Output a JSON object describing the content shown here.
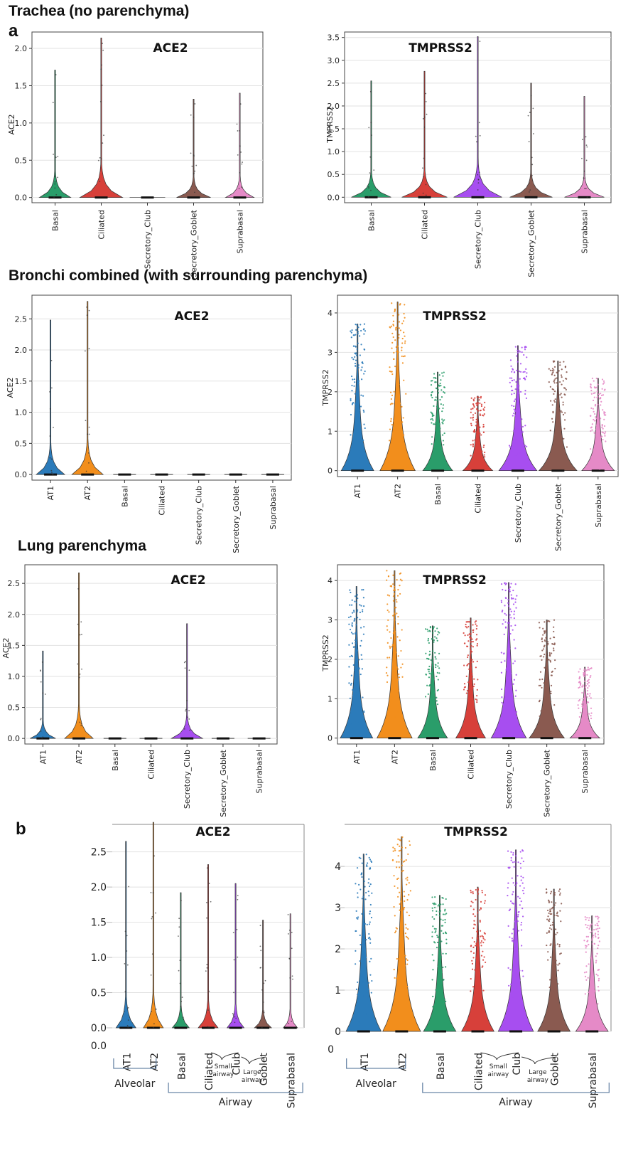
{
  "sections": {
    "trachea": "Trachea (no parenchyma)",
    "bronchi": "Bronchi combined (with surrounding parenchyma)",
    "lung": "Lung parenchyma"
  },
  "panels": {
    "a": "a",
    "b": "b"
  },
  "palette": {
    "AT1": "#2b7bba",
    "AT2": "#f28e1c",
    "Basal": "#2a9d6a",
    "Ciliated": "#d7403a",
    "Secretory_Club": "#a74ef0",
    "Secretory_Goblet": "#8a5a50",
    "Suprabasal": "#e58ac7"
  },
  "group_labels": {
    "alveolar": "Alveolar",
    "airway": "Airway",
    "small_airway": [
      "Small",
      "airway"
    ],
    "large_airway": [
      "Large",
      "airway"
    ]
  },
  "chart_data": [
    {
      "id": "trachea_ace2",
      "type": "violin",
      "title": "ACE2",
      "ylabel": "ACE2",
      "categories": [
        "Basal",
        "Ciliated",
        "Secretory_Club",
        "Secretory_Goblet",
        "Suprabasal"
      ],
      "yticks": [
        "0.0",
        "0.5",
        "1.0",
        "1.5",
        "2.0"
      ],
      "ylim": [
        -0.07,
        2.22
      ],
      "max_values": [
        1.71,
        2.14,
        0.0,
        1.32,
        1.4
      ]
    },
    {
      "id": "trachea_tmprss2",
      "type": "violin",
      "title": "TMPRSS2",
      "ylabel": "TMPRSS2",
      "categories": [
        "Basal",
        "Ciliated",
        "Secretory_Club",
        "Secretory_Goblet",
        "Suprabasal"
      ],
      "yticks": [
        "0.0",
        "0.5",
        "1.0",
        "1.5",
        "2.0",
        "2.5",
        "3.0",
        "3.5"
      ],
      "ylim": [
        -0.12,
        3.62
      ],
      "max_values": [
        2.55,
        2.76,
        3.52,
        2.5,
        2.21
      ]
    },
    {
      "id": "bronchi_ace2",
      "type": "violin",
      "title": "ACE2",
      "ylabel": "ACE2",
      "categories": [
        "AT1",
        "AT2",
        "Basal",
        "Ciliated",
        "Secretory_Club",
        "Secretory_Goblet",
        "Suprabasal"
      ],
      "yticks": [
        "0.0",
        "0.5",
        "1.0",
        "1.5",
        "2.0",
        "2.5"
      ],
      "ylim": [
        -0.09,
        2.88
      ],
      "max_values": [
        2.48,
        2.78,
        0.0,
        0.0,
        0.0,
        0.0,
        0.0
      ]
    },
    {
      "id": "bronchi_tmprss2",
      "type": "violin",
      "title": "TMPRSS2",
      "ylabel": "TMPRSS2",
      "categories": [
        "AT1",
        "AT2",
        "Basal",
        "Ciliated",
        "Secretory_Club",
        "Secretory_Goblet",
        "Suprabasal"
      ],
      "yticks": [
        "0",
        "1",
        "2",
        "3",
        "4"
      ],
      "ylim": [
        -0.15,
        4.45
      ],
      "max_values": [
        3.72,
        4.28,
        2.5,
        1.89,
        3.17,
        2.78,
        2.34
      ]
    },
    {
      "id": "lung_ace2",
      "type": "violin",
      "title": "ACE2",
      "ylabel": "ACE2",
      "categories": [
        "AT1",
        "AT2",
        "Basal",
        "Ciliated",
        "Secretory_Club",
        "Secretory_Goblet",
        "Suprabasal"
      ],
      "yticks": [
        "0.0",
        "0.5",
        "1.0",
        "1.5",
        "2.0",
        "2.5"
      ],
      "ylim": [
        -0.09,
        2.8
      ],
      "max_values": [
        1.41,
        2.67,
        0.0,
        0.0,
        1.85,
        0.0,
        0.0
      ]
    },
    {
      "id": "lung_tmprss2",
      "type": "violin",
      "title": "TMPRSS2",
      "ylabel": "TMPRSS2",
      "categories": [
        "AT1",
        "AT2",
        "Basal",
        "Ciliated",
        "Secretory_Club",
        "Secretory_Goblet",
        "Suprabasal"
      ],
      "yticks": [
        "0",
        "1",
        "2",
        "3",
        "4"
      ],
      "ylim": [
        -0.15,
        4.4
      ],
      "max_values": [
        3.85,
        4.25,
        2.85,
        3.05,
        3.95,
        3.0,
        1.8
      ]
    },
    {
      "id": "b_ace2",
      "type": "violin",
      "title": "ACE2",
      "ylabel": "",
      "categories": [
        "AT1",
        "AT2",
        "Basal",
        "Ciliated",
        "Club",
        "Goblet",
        "Suprabasal"
      ],
      "yticks": [
        "0.0",
        "0.5",
        "1.0",
        "1.5",
        "2.0",
        "2.5"
      ],
      "ylim": [
        0.0,
        2.85
      ],
      "max_values": [
        2.65,
        2.92,
        1.92,
        2.32,
        2.05,
        1.53,
        1.62
      ]
    },
    {
      "id": "b_tmprss2",
      "type": "violin",
      "title": "TMPRSS2",
      "ylabel": "",
      "categories": [
        "AT1",
        "AT2",
        "Basal",
        "Ciliated",
        "Club",
        "Goblet",
        "Suprabasal"
      ],
      "yticks": [
        "0",
        "1",
        "2",
        "3",
        "4"
      ],
      "ylim": [
        0.0,
        4.95
      ],
      "max_values": [
        4.3,
        4.72,
        3.3,
        3.5,
        4.4,
        3.45,
        2.8
      ]
    }
  ]
}
